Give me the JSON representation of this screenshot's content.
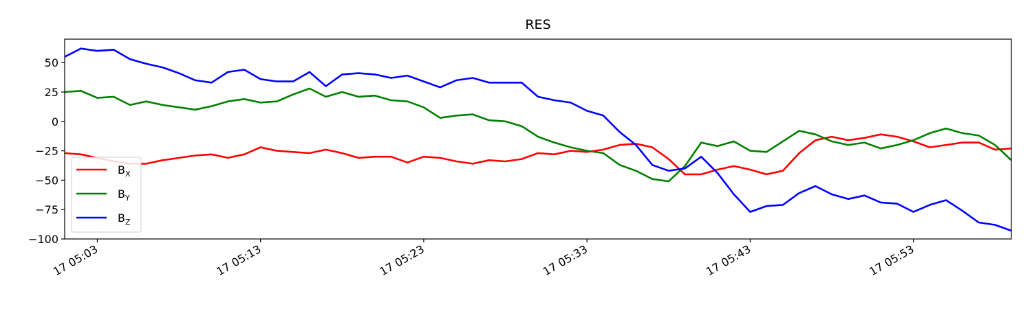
{
  "chart_data": {
    "type": "line",
    "title": "RES",
    "xlabel": "",
    "ylabel": "",
    "x_start": "17 05:01",
    "x_step_minutes": 1,
    "xlim": [
      "17 05:01",
      "17 05:59"
    ],
    "ylim": [
      -100,
      70
    ],
    "yticks": [
      50,
      25,
      0,
      -25,
      -50,
      -75,
      -100
    ],
    "xticks": [
      "17 05:03",
      "17 05:13",
      "17 05:23",
      "17 05:33",
      "17 05:43",
      "17 05:53"
    ],
    "grid": false,
    "legend_position": "lower-left",
    "series": [
      {
        "name": "B",
        "subscript": "X",
        "color": "#ff0000",
        "values": [
          -27,
          -28,
          -31,
          -34,
          -36,
          -36,
          -33,
          -31,
          -29,
          -28,
          -31,
          -28,
          -22,
          -25,
          -26,
          -27,
          -24,
          -27,
          -31,
          -30,
          -30,
          -35,
          -30,
          -31,
          -34,
          -36,
          -33,
          -34,
          -32,
          -27,
          -28,
          -25,
          -26,
          -24,
          -20,
          -19,
          -22,
          -32,
          -45,
          -45,
          -41,
          -38,
          -41,
          -45,
          -42,
          -27,
          -16,
          -13,
          -16,
          -14,
          -11,
          -13,
          -17,
          -22,
          -20,
          -18,
          -18,
          -24,
          -23
        ]
      },
      {
        "name": "B",
        "subscript": "Y",
        "color": "#008000",
        "values": [
          25,
          26,
          20,
          21,
          14,
          17,
          14,
          12,
          10,
          13,
          17,
          19,
          16,
          17,
          23,
          28,
          21,
          25,
          21,
          22,
          18,
          17,
          12,
          3,
          5,
          6,
          1,
          0,
          -4,
          -13,
          -18,
          -22,
          -25,
          -27,
          -37,
          -42,
          -49,
          -51,
          -38,
          -18,
          -21,
          -17,
          -25,
          -26,
          -17,
          -8,
          -11,
          -17,
          -20,
          -18,
          -23,
          -20,
          -16,
          -10,
          -6,
          -10,
          -12,
          -20,
          -33
        ]
      },
      {
        "name": "B",
        "subscript": "Z",
        "color": "#0000ff",
        "values": [
          55,
          62,
          60,
          61,
          53,
          49,
          46,
          41,
          35,
          33,
          42,
          44,
          36,
          34,
          34,
          42,
          30,
          40,
          41,
          40,
          37,
          39,
          34,
          29,
          35,
          37,
          33,
          33,
          33,
          21,
          18,
          16,
          9,
          5,
          -9,
          -20,
          -37,
          -42,
          -40,
          -30,
          -44,
          -62,
          -77,
          -72,
          -71,
          -61,
          -55,
          -62,
          -66,
          -63,
          -69,
          -70,
          -77,
          -71,
          -67,
          -76,
          -86,
          -88,
          -93
        ]
      }
    ]
  }
}
